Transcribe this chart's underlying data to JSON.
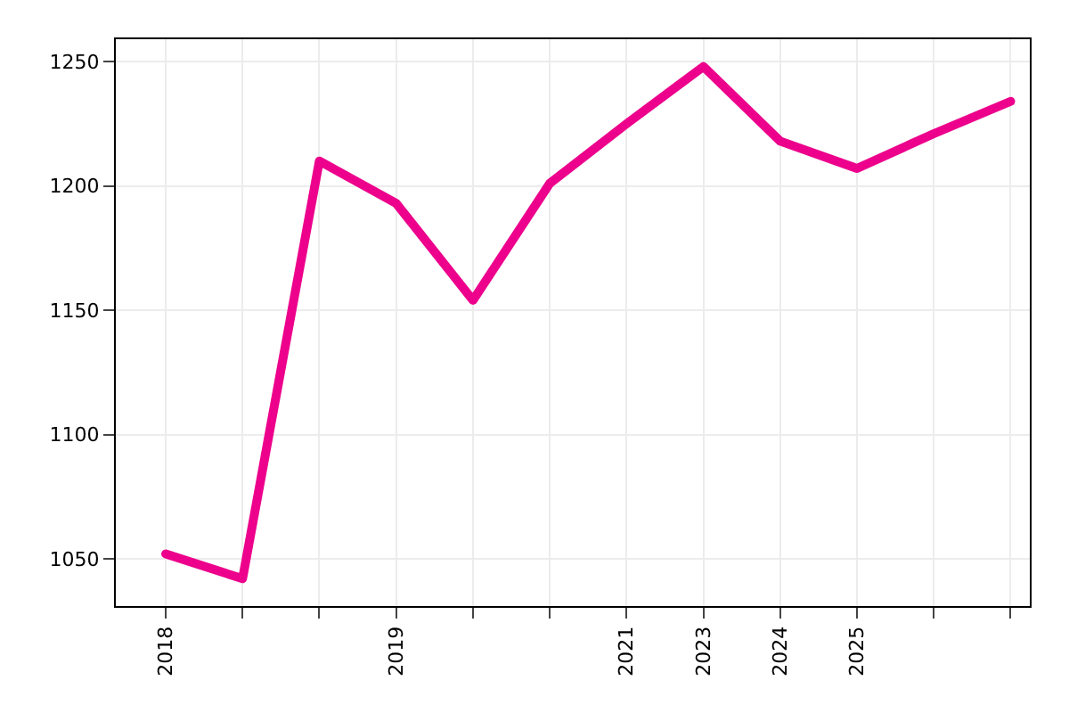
{
  "chart_data": {
    "type": "line",
    "categories": [
      "2018",
      null,
      null,
      "2019",
      null,
      null,
      "2021",
      "2023",
      "2024",
      "2025",
      null,
      null
    ],
    "series": [
      {
        "color": "#ec008c",
        "values": [
          1052,
          1042,
          1210,
          1193,
          1154,
          1201,
          1225,
          1248,
          1218,
          1207,
          1221,
          1234
        ]
      }
    ],
    "ylim": [
      1031,
      1259
    ],
    "yticks": [
      1050,
      1100,
      1150,
      1200,
      1250
    ],
    "grid": true,
    "marker": "none",
    "line_style": "solid"
  }
}
